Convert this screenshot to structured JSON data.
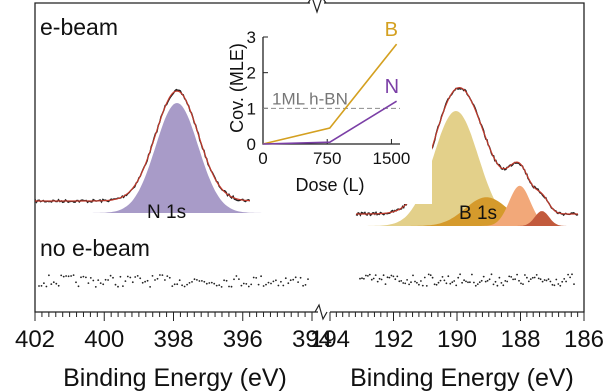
{
  "labels": {
    "panel_top": "e-beam",
    "panel_bottom": "no e-beam",
    "peak_left": "N 1s",
    "peak_right": "B 1s"
  },
  "colors": {
    "frame": "#222222",
    "n1s_fill": "#a89bc8",
    "b1s_main": "#e3d08a",
    "b1s_mid": "#d59a2c",
    "b1s_orange": "#f2a879",
    "b1s_small": "#c25a3c",
    "envelope": "#c0392b",
    "raw": "#222222",
    "series_B": "#d4a020",
    "series_N": "#7b3fa6",
    "ml_line": "#8c8c8c",
    "ml_text": "#777777"
  },
  "chart_data": [
    {
      "type": "line",
      "panel": "left",
      "xlabel": "Binding Energy (eV)",
      "xlim": [
        402,
        394
      ],
      "xticks": [
        402,
        400,
        398,
        396,
        394
      ],
      "annotations": [
        "e-beam",
        "no e-beam",
        "N 1s"
      ],
      "components": [
        {
          "name": "N 1s",
          "center": 397.9,
          "fwhm": 1.45,
          "height": 1.0
        }
      ],
      "baseline_noise": true
    },
    {
      "type": "line",
      "panel": "right",
      "xlabel": "Binding Energy (eV)",
      "xlim": [
        194,
        186
      ],
      "xticks": [
        194,
        192,
        190,
        188,
        186
      ],
      "annotations": [
        "B 1s"
      ],
      "components": [
        {
          "name": "B 1s main",
          "center": 190.4,
          "fwhm": 1.9,
          "height": 1.0
        },
        {
          "name": "B 1s component 2",
          "center": 189.3,
          "fwhm": 1.8,
          "height": 0.25
        },
        {
          "name": "B 1s component 3",
          "center": 188.1,
          "fwhm": 0.9,
          "height": 0.35
        },
        {
          "name": "B 1s component 4",
          "center": 187.3,
          "fwhm": 0.6,
          "height": 0.13
        }
      ],
      "baseline_noise": true
    },
    {
      "type": "line",
      "panel": "inset",
      "xlabel": "Dose (L)",
      "ylabel": "Cov. (MLE)",
      "xlim": [
        0,
        1600
      ],
      "ylim": [
        0,
        3
      ],
      "xticks": [
        0,
        750,
        1500
      ],
      "yticks": [
        0,
        1,
        2,
        3
      ],
      "reference_line": {
        "y": 1,
        "label": "1ML h-BN"
      },
      "series": [
        {
          "name": "B",
          "x": [
            0,
            780,
            1560
          ],
          "y": [
            0.0,
            0.45,
            2.8
          ]
        },
        {
          "name": "N",
          "x": [
            0,
            780,
            1560
          ],
          "y": [
            0.0,
            0.05,
            1.2
          ]
        }
      ]
    }
  ]
}
